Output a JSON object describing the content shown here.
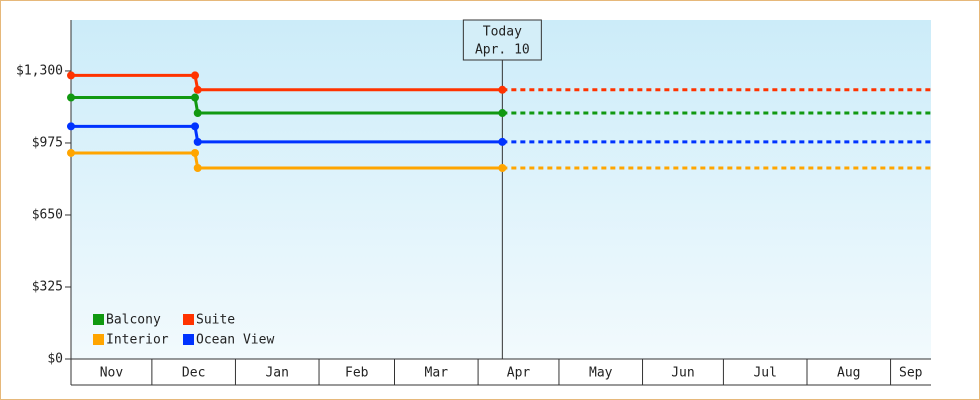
{
  "chart_data": {
    "type": "step-line",
    "xlim": [
      0,
      319
    ],
    "xticks": [
      {
        "value": 0,
        "label": "Nov"
      },
      {
        "value": 30,
        "label": "Dec"
      },
      {
        "value": 61,
        "label": "Jan"
      },
      {
        "value": 92,
        "label": "Feb"
      },
      {
        "value": 120,
        "label": "Mar"
      },
      {
        "value": 151,
        "label": "Apr"
      },
      {
        "value": 181,
        "label": "May"
      },
      {
        "value": 212,
        "label": "Jun"
      },
      {
        "value": 242,
        "label": "Jul"
      },
      {
        "value": 273,
        "label": "Aug"
      },
      {
        "value": 304,
        "label": "Sep"
      }
    ],
    "ylim": [
      0,
      1530
    ],
    "yticks": [
      {
        "value": 0,
        "label": "$0"
      },
      {
        "value": 325,
        "label": "$325"
      },
      {
        "value": 650,
        "label": "$650"
      },
      {
        "value": 975,
        "label": "$975"
      },
      {
        "value": 1300,
        "label": "$1,300"
      }
    ],
    "x": [
      0,
      46,
      47,
      160
    ],
    "projection": true,
    "series": [
      {
        "name": "Balcony",
        "color": "#119911",
        "values": [
          1180,
          1180,
          1110,
          1110
        ]
      },
      {
        "name": "Suite",
        "color": "#ff3300",
        "values": [
          1280,
          1280,
          1215,
          1215
        ]
      },
      {
        "name": "Interior",
        "color": "#ffa500",
        "values": [
          930,
          930,
          862,
          862
        ]
      },
      {
        "name": "Ocean View",
        "color": "#0033ff",
        "values": [
          1050,
          1050,
          980,
          980
        ]
      }
    ],
    "annotation": {
      "x": 160,
      "lines": [
        "Today",
        "Apr. 10"
      ]
    }
  }
}
